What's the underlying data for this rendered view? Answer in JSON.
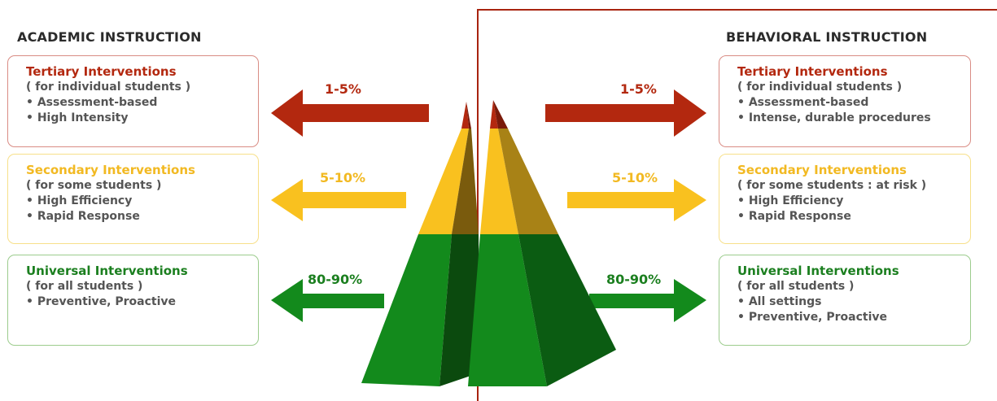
{
  "academic": {
    "title": "ACADEMIC INSTRUCTION",
    "tertiary": {
      "title": "Tertiary Interventions",
      "lines": [
        "( for individual students )",
        "• Assessment-based",
        "• High Intensity"
      ],
      "percent": "1-5%"
    },
    "secondary": {
      "title": "Secondary Interventions",
      "lines": [
        "( for some students )",
        "• High Efficiency",
        "• Rapid Response"
      ],
      "percent": "5-10%"
    },
    "universal": {
      "title": "Universal Interventions",
      "lines": [
        "( for all students )",
        "• Preventive, Proactive"
      ],
      "percent": "80-90%"
    }
  },
  "behavioral": {
    "title": "BEHAVIORAL INSTRUCTION",
    "tertiary": {
      "title": "Tertiary Interventions",
      "lines": [
        "( for individual students )",
        "• Assessment-based",
        "• Intense, durable procedures"
      ],
      "percent": "1-5%"
    },
    "secondary": {
      "title": "Secondary Interventions",
      "lines": [
        "( for some students : at risk )",
        "• High Efficiency",
        "• Rapid Response"
      ],
      "percent": "5-10%"
    },
    "universal": {
      "title": "Universal Interventions",
      "lines": [
        "( for all students )",
        "• All settings",
        "• Preventive, Proactive"
      ],
      "percent": "80-90%"
    }
  },
  "colors": {
    "tertiary": "#b3280f",
    "secondary": "#f9c11f",
    "universal": "#138a1c",
    "divider": "#a82410"
  }
}
